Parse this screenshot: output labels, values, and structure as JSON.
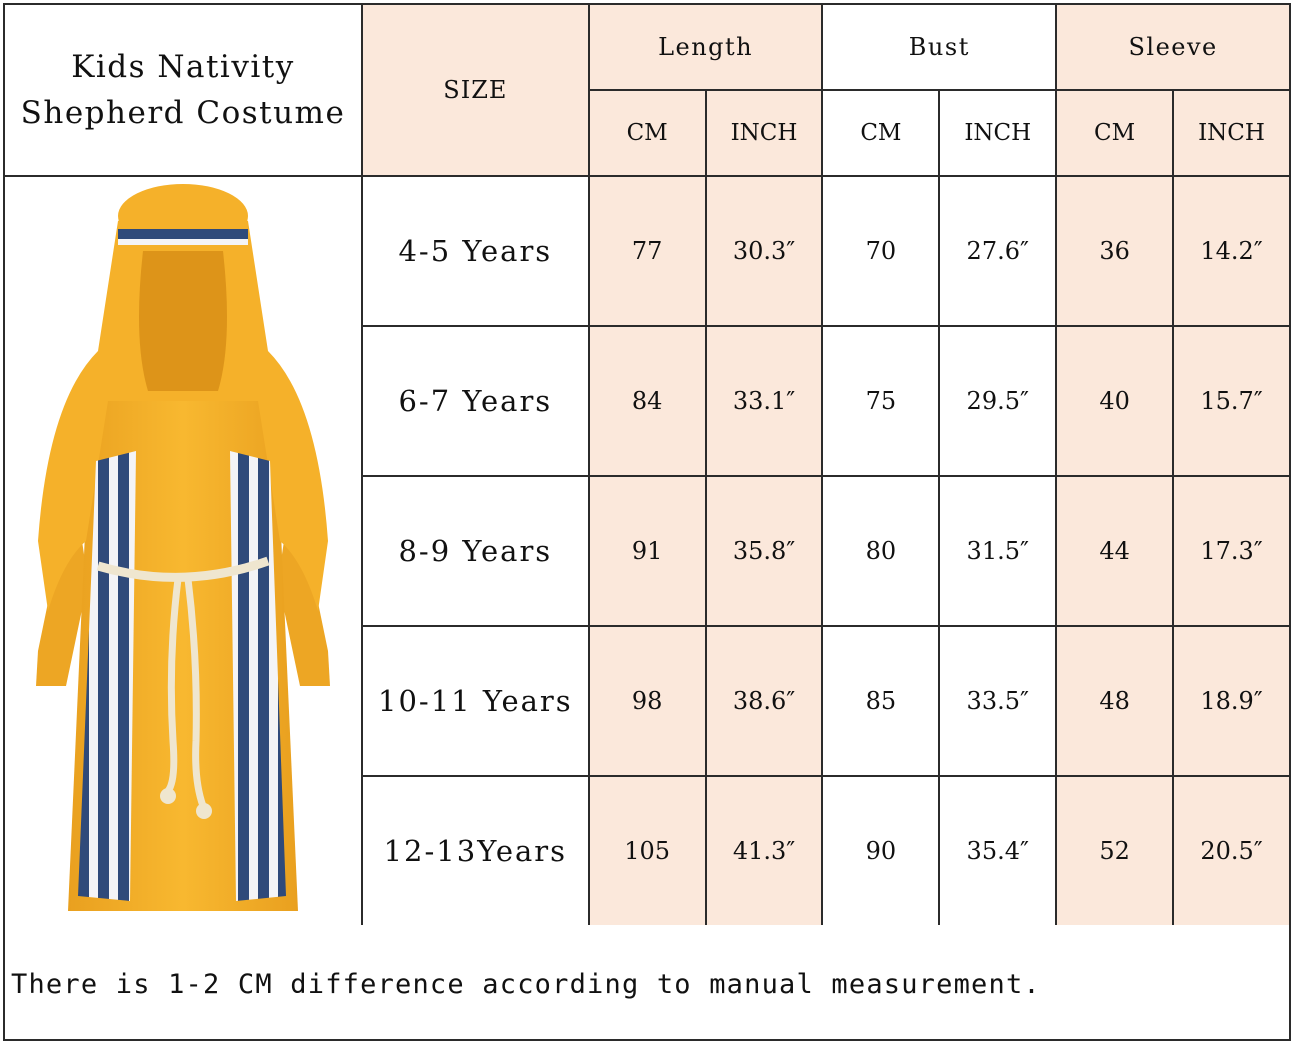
{
  "product_title_line1": "Kids Nativity",
  "product_title_line2": "Shepherd Costume",
  "size_header": "SIZE",
  "groups": [
    "Length",
    "Bust",
    "Sleeve"
  ],
  "units": [
    "CM",
    "INCH",
    "CM",
    "INCH",
    "CM",
    "INCH"
  ],
  "rows": [
    {
      "size": "4-5 Years",
      "cells": [
        "77",
        "30.3″",
        "70",
        "27.6″",
        "36",
        "14.2″"
      ]
    },
    {
      "size": "6-7 Years",
      "cells": [
        "84",
        "33.1″",
        "75",
        "29.5″",
        "40",
        "15.7″"
      ]
    },
    {
      "size": "8-9 Years",
      "cells": [
        "91",
        "35.8″",
        "80",
        "31.5″",
        "44",
        "17.3″"
      ]
    },
    {
      "size": "10-11 Years",
      "cells": [
        "98",
        "38.6″",
        "85",
        "33.5″",
        "48",
        "18.9″"
      ]
    },
    {
      "size": "12-13Years",
      "cells": [
        "105",
        "41.3″",
        "90",
        "35.4″",
        "52",
        "20.5″"
      ]
    }
  ],
  "note": "There is 1-2 CM difference according to manual measurement.",
  "colors": {
    "peach": "#fbe8db",
    "border": "#2b2b2b",
    "robe_yellow": "#f5b12a",
    "stripe_blue": "#2f4a7a"
  },
  "image": {
    "icon": "shepherd-costume-illustration"
  }
}
